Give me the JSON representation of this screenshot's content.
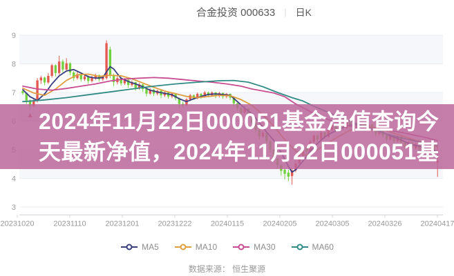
{
  "header": {
    "title": "合金投资 000633",
    "separator": "|",
    "tab": "日K"
  },
  "overlay": {
    "line1": "2024年11月22日000051基金净值查询今",
    "line2": "天最新净值，2024年11月22日000051基",
    "bg": "rgba(186,101,152,0.84)",
    "text_color": "#ffffff"
  },
  "legend": [
    {
      "name": "MA5",
      "color": "#383d7d"
    },
    {
      "name": "MA10",
      "color": "#de9e3f"
    },
    {
      "name": "MA30",
      "color": "#c84b90"
    },
    {
      "name": "MA60",
      "color": "#2f8a83"
    }
  ],
  "footer": {
    "source": "数据来源： 恒生聚源"
  },
  "chart_data": {
    "type": "candlestick",
    "title": "合金投资 000633 日K",
    "ylim": [
      3,
      9
    ],
    "y_ticks": [
      9,
      8,
      7,
      6,
      5,
      4,
      3
    ],
    "x_tick_labels": [
      "20231020",
      "20231110",
      "20231201",
      "20231222",
      "20240115",
      "20240205",
      "20240305",
      "20240326",
      "20240417"
    ],
    "grid": "horizontal-lines-with-alternating-bands",
    "legend_position": "bottom",
    "colors": {
      "up": "#e25a50",
      "down": "#72d13f",
      "grid": "#ebedf1",
      "band": "#f5f7fa",
      "axis": "#d0d3d8",
      "label": "#999999",
      "marker": "#cc4a52"
    },
    "candles": [
      [
        7.05,
        6.98,
        6.92,
        7.1
      ],
      [
        6.98,
        6.72,
        6.6,
        7.0
      ],
      [
        6.72,
        6.52,
        6.38,
        6.75
      ],
      [
        6.52,
        6.72,
        6.48,
        6.78
      ],
      [
        6.7,
        7.42,
        6.65,
        7.5
      ],
      [
        7.42,
        7.52,
        7.3,
        7.58
      ],
      [
        7.52,
        7.35,
        7.25,
        7.55
      ],
      [
        7.35,
        7.58,
        7.3,
        7.68
      ],
      [
        7.58,
        7.95,
        7.52,
        8.0
      ],
      [
        7.95,
        7.68,
        7.56,
        7.98
      ],
      [
        7.68,
        8.08,
        7.62,
        8.28
      ],
      [
        8.08,
        7.8,
        7.7,
        8.15
      ],
      [
        7.8,
        8.02,
        7.72,
        8.2
      ],
      [
        8.02,
        7.7,
        7.6,
        8.05
      ],
      [
        7.7,
        7.5,
        7.4,
        7.75
      ],
      [
        7.5,
        7.64,
        7.45,
        7.72
      ],
      [
        7.64,
        7.46,
        7.38,
        7.68
      ],
      [
        7.46,
        7.56,
        7.4,
        7.62
      ],
      [
        7.56,
        7.4,
        7.3,
        7.6
      ],
      [
        7.4,
        7.52,
        7.35,
        7.58
      ],
      [
        7.52,
        7.6,
        7.44,
        7.66
      ],
      [
        7.6,
        7.46,
        7.38,
        7.63
      ],
      [
        7.46,
        7.55,
        7.4,
        7.6
      ],
      [
        7.5,
        8.72,
        7.45,
        8.82
      ],
      [
        8.5,
        7.6,
        7.5,
        8.6
      ],
      [
        7.6,
        7.36,
        7.22,
        7.66
      ],
      [
        7.36,
        7.5,
        7.28,
        7.56
      ],
      [
        7.5,
        7.32,
        7.24,
        7.54
      ],
      [
        7.32,
        7.44,
        7.26,
        7.5
      ],
      [
        7.44,
        7.26,
        7.16,
        7.48
      ],
      [
        7.26,
        7.36,
        7.2,
        7.42
      ],
      [
        7.36,
        7.16,
        7.06,
        7.38
      ],
      [
        7.16,
        7.28,
        7.1,
        7.33
      ],
      [
        7.28,
        7.12,
        7.02,
        7.3
      ],
      [
        7.12,
        6.96,
        6.86,
        7.14
      ],
      [
        6.96,
        7.1,
        6.92,
        7.15
      ],
      [
        7.1,
        6.96,
        6.88,
        7.12
      ],
      [
        6.96,
        7.06,
        6.9,
        7.1
      ],
      [
        7.06,
        6.9,
        6.8,
        7.08
      ],
      [
        6.9,
        7.0,
        6.84,
        7.05
      ],
      [
        7.0,
        6.86,
        6.78,
        7.02
      ],
      [
        6.86,
        6.96,
        6.8,
        7.0
      ],
      [
        6.96,
        6.8,
        6.72,
        6.98
      ],
      [
        6.8,
        6.6,
        6.45,
        6.82
      ],
      [
        6.6,
        6.55,
        6.48,
        6.68
      ],
      [
        6.55,
        6.76,
        6.52,
        6.8
      ],
      [
        6.76,
        6.9,
        6.7,
        6.95
      ],
      [
        6.9,
        6.8,
        6.74,
        6.93
      ],
      [
        6.8,
        6.95,
        6.76,
        7.0
      ],
      [
        6.95,
        6.85,
        6.78,
        6.98
      ],
      [
        6.85,
        7.0,
        6.82,
        7.05
      ],
      [
        7.0,
        6.9,
        6.83,
        7.03
      ],
      [
        6.9,
        7.0,
        6.85,
        7.04
      ],
      [
        7.0,
        6.88,
        6.8,
        7.02
      ],
      [
        6.88,
        6.98,
        6.82,
        7.02
      ],
      [
        6.98,
        6.86,
        6.78,
        7.0
      ],
      [
        6.86,
        6.95,
        6.8,
        6.98
      ],
      [
        6.95,
        6.82,
        6.74,
        6.97
      ],
      [
        6.82,
        6.62,
        6.52,
        6.84
      ],
      [
        6.62,
        6.46,
        6.36,
        6.64
      ],
      [
        6.46,
        6.3,
        6.2,
        6.48
      ],
      [
        6.3,
        6.44,
        6.26,
        6.54
      ],
      [
        6.44,
        6.2,
        6.1,
        6.46
      ],
      [
        6.2,
        5.95,
        5.85,
        6.22
      ],
      [
        5.95,
        5.7,
        5.6,
        5.98
      ],
      [
        5.7,
        5.46,
        5.36,
        5.72
      ],
      [
        5.46,
        5.6,
        5.4,
        5.66
      ],
      [
        5.6,
        5.3,
        5.2,
        5.62
      ],
      [
        5.3,
        5.0,
        4.9,
        5.32
      ],
      [
        5.0,
        4.7,
        4.6,
        5.02
      ],
      [
        4.7,
        4.46,
        4.36,
        4.72
      ],
      [
        4.46,
        4.26,
        4.1,
        4.48
      ],
      [
        4.3,
        4.16,
        3.96,
        4.34
      ],
      [
        4.2,
        4.06,
        3.9,
        4.3
      ],
      [
        4.08,
        4.28,
        3.78,
        4.36
      ],
      [
        4.28,
        4.52,
        4.22,
        4.6
      ],
      [
        4.52,
        4.8,
        4.46,
        4.86
      ],
      [
        4.8,
        5.08,
        4.74,
        5.14
      ],
      [
        5.08,
        4.94,
        4.85,
        5.12
      ],
      [
        4.94,
        5.28,
        4.9,
        5.34
      ],
      [
        5.28,
        5.5,
        5.22,
        5.56
      ],
      [
        5.5,
        5.36,
        5.28,
        5.54
      ],
      [
        5.36,
        5.6,
        5.32,
        5.66
      ],
      [
        5.6,
        5.46,
        5.38,
        5.64
      ],
      [
        5.46,
        5.7,
        5.42,
        5.76
      ],
      [
        5.7,
        5.85,
        5.64,
        5.9
      ],
      [
        5.85,
        5.7,
        5.62,
        5.88
      ],
      [
        5.7,
        5.9,
        5.66,
        5.95
      ],
      [
        5.9,
        5.76,
        5.68,
        5.93
      ],
      [
        5.76,
        5.95,
        5.72,
        6.04
      ],
      [
        5.95,
        5.8,
        5.72,
        5.98
      ],
      [
        5.8,
        5.94,
        5.76,
        5.99
      ],
      [
        5.94,
        5.78,
        5.7,
        5.96
      ],
      [
        5.78,
        5.9,
        5.72,
        5.94
      ],
      [
        5.9,
        5.72,
        5.64,
        5.92
      ],
      [
        5.72,
        5.88,
        5.68,
        5.92
      ],
      [
        5.88,
        5.7,
        5.62,
        5.9
      ],
      [
        5.7,
        5.55,
        5.47,
        5.72
      ],
      [
        5.55,
        5.68,
        5.5,
        5.72
      ],
      [
        5.68,
        5.5,
        5.42,
        5.7
      ],
      [
        5.5,
        5.35,
        5.27,
        5.52
      ],
      [
        5.35,
        5.5,
        5.31,
        5.55
      ],
      [
        5.5,
        5.3,
        5.22,
        5.52
      ],
      [
        5.3,
        5.45,
        5.26,
        5.5
      ],
      [
        5.45,
        5.25,
        5.17,
        5.47
      ],
      [
        5.25,
        5.1,
        5.02,
        5.27
      ],
      [
        5.1,
        5.25,
        5.06,
        5.3
      ],
      [
        5.25,
        5.05,
        4.97,
        5.27
      ],
      [
        5.05,
        5.2,
        5.01,
        5.25
      ],
      [
        5.2,
        5.0,
        4.92,
        5.22
      ],
      [
        5.0,
        5.15,
        4.96,
        5.2
      ],
      [
        5.15,
        4.95,
        4.87,
        5.17
      ],
      [
        4.95,
        5.1,
        4.91,
        5.15
      ],
      [
        5.1,
        4.9,
        4.82,
        5.12
      ],
      [
        4.55,
        4.62,
        4.05,
        5.1
      ]
    ],
    "ma_series": [
      {
        "name": "MA5",
        "color": "#383d7d",
        "points": [
          [
            0,
            7.1
          ],
          [
            2,
            6.85
          ],
          [
            4,
            6.72
          ],
          [
            6,
            6.95
          ],
          [
            8,
            7.3
          ],
          [
            10,
            7.58
          ],
          [
            12,
            7.75
          ],
          [
            14,
            7.8
          ],
          [
            16,
            7.68
          ],
          [
            18,
            7.55
          ],
          [
            20,
            7.5
          ],
          [
            22,
            7.52
          ],
          [
            23,
            7.72
          ],
          [
            24,
            7.9
          ],
          [
            25,
            7.82
          ],
          [
            26,
            7.65
          ],
          [
            27,
            7.5
          ],
          [
            29,
            7.38
          ],
          [
            31,
            7.3
          ],
          [
            33,
            7.2
          ],
          [
            35,
            7.08
          ],
          [
            37,
            7.02
          ],
          [
            39,
            6.97
          ],
          [
            41,
            6.92
          ],
          [
            43,
            6.78
          ],
          [
            45,
            6.68
          ],
          [
            47,
            6.78
          ],
          [
            49,
            6.86
          ],
          [
            51,
            6.93
          ],
          [
            53,
            6.95
          ],
          [
            55,
            6.93
          ],
          [
            57,
            6.9
          ],
          [
            59,
            6.68
          ],
          [
            61,
            6.45
          ],
          [
            63,
            6.25
          ],
          [
            65,
            5.95
          ],
          [
            67,
            5.62
          ],
          [
            69,
            5.32
          ],
          [
            71,
            4.9
          ],
          [
            73,
            4.42
          ],
          [
            74,
            4.22
          ],
          [
            75,
            4.3
          ],
          [
            77,
            4.6
          ],
          [
            79,
            4.95
          ],
          [
            81,
            5.22
          ],
          [
            83,
            5.45
          ],
          [
            85,
            5.6
          ],
          [
            87,
            5.72
          ],
          [
            89,
            5.83
          ],
          [
            91,
            5.88
          ],
          [
            93,
            5.85
          ],
          [
            95,
            5.8
          ],
          [
            97,
            5.72
          ],
          [
            99,
            5.6
          ],
          [
            101,
            5.48
          ],
          [
            103,
            5.4
          ],
          [
            105,
            5.28
          ],
          [
            107,
            5.18
          ],
          [
            109,
            5.12
          ],
          [
            111,
            5.06
          ],
          [
            113,
            5.0
          ],
          [
            114,
            4.88
          ]
        ]
      },
      {
        "name": "MA10",
        "color": "#de9e3f",
        "points": [
          [
            0,
            7.15
          ],
          [
            3,
            6.98
          ],
          [
            6,
            6.9
          ],
          [
            9,
            7.12
          ],
          [
            12,
            7.42
          ],
          [
            15,
            7.62
          ],
          [
            18,
            7.64
          ],
          [
            21,
            7.56
          ],
          [
            24,
            7.6
          ],
          [
            27,
            7.58
          ],
          [
            30,
            7.48
          ],
          [
            33,
            7.33
          ],
          [
            36,
            7.18
          ],
          [
            39,
            7.05
          ],
          [
            42,
            6.96
          ],
          [
            45,
            6.86
          ],
          [
            48,
            6.82
          ],
          [
            51,
            6.86
          ],
          [
            54,
            6.9
          ],
          [
            57,
            6.89
          ],
          [
            60,
            6.75
          ],
          [
            63,
            6.55
          ],
          [
            66,
            6.22
          ],
          [
            69,
            5.82
          ],
          [
            72,
            5.35
          ],
          [
            75,
            4.95
          ],
          [
            78,
            4.8
          ],
          [
            81,
            5.0
          ],
          [
            84,
            5.25
          ],
          [
            87,
            5.48
          ],
          [
            90,
            5.68
          ],
          [
            93,
            5.78
          ],
          [
            96,
            5.79
          ],
          [
            99,
            5.7
          ],
          [
            102,
            5.58
          ],
          [
            105,
            5.45
          ],
          [
            108,
            5.33
          ],
          [
            111,
            5.22
          ],
          [
            114,
            5.1
          ]
        ]
      },
      {
        "name": "MA30",
        "color": "#c84b90",
        "points": [
          [
            0,
            7.22
          ],
          [
            4,
            7.12
          ],
          [
            8,
            7.08
          ],
          [
            12,
            7.14
          ],
          [
            16,
            7.22
          ],
          [
            20,
            7.3
          ],
          [
            24,
            7.4
          ],
          [
            28,
            7.47
          ],
          [
            32,
            7.5
          ],
          [
            36,
            7.52
          ],
          [
            40,
            7.5
          ],
          [
            44,
            7.45
          ],
          [
            48,
            7.4
          ],
          [
            52,
            7.36
          ],
          [
            56,
            7.3
          ],
          [
            60,
            7.22
          ],
          [
            63,
            7.12
          ],
          [
            66,
            7.05
          ],
          [
            69,
            6.98
          ],
          [
            72,
            6.85
          ],
          [
            75,
            6.6
          ],
          [
            78,
            6.4
          ],
          [
            81,
            6.2
          ],
          [
            84,
            6.05
          ],
          [
            87,
            5.92
          ],
          [
            90,
            5.82
          ],
          [
            93,
            5.76
          ],
          [
            96,
            5.73
          ],
          [
            99,
            5.7
          ],
          [
            102,
            5.65
          ],
          [
            105,
            5.58
          ],
          [
            108,
            5.5
          ],
          [
            111,
            5.42
          ],
          [
            114,
            5.32
          ]
        ]
      },
      {
        "name": "MA60",
        "color": "#2f8a83",
        "points": [
          [
            0,
            6.68
          ],
          [
            6,
            6.74
          ],
          [
            12,
            6.82
          ],
          [
            18,
            6.92
          ],
          [
            24,
            7.02
          ],
          [
            30,
            7.12
          ],
          [
            36,
            7.22
          ],
          [
            42,
            7.3
          ],
          [
            48,
            7.36
          ],
          [
            54,
            7.41
          ],
          [
            58,
            7.42
          ],
          [
            62,
            7.36
          ],
          [
            66,
            7.2
          ],
          [
            70,
            7.0
          ],
          [
            74,
            6.82
          ],
          [
            77,
            6.7
          ],
          [
            80,
            6.52
          ],
          [
            84,
            6.3
          ],
          [
            88,
            6.1
          ],
          [
            92,
            5.9
          ],
          [
            96,
            5.72
          ],
          [
            100,
            5.55
          ],
          [
            104,
            5.42
          ],
          [
            108,
            5.3
          ],
          [
            112,
            5.2
          ],
          [
            114,
            5.15
          ]
        ]
      }
    ],
    "marker": {
      "type": "arrow-up-icon",
      "day": 2,
      "price": 6.3
    }
  }
}
